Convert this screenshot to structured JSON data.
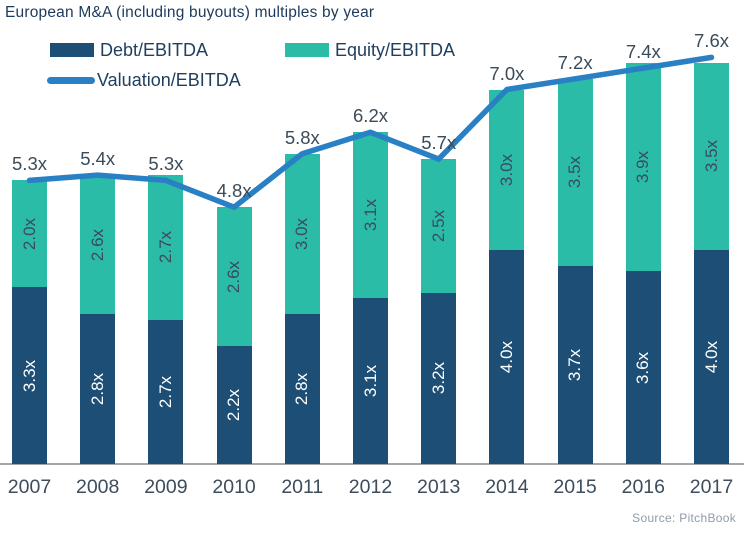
{
  "title": "European M&A (including buyouts) multiples by year",
  "source": "Source: PitchBook",
  "colors": {
    "debt": "#1d4e75",
    "equity": "#2bbca8",
    "line": "#2980c4",
    "axis": "#a6a6a6",
    "text_dark": "#3a4c5a",
    "text_navy": "#20405f"
  },
  "legend": {
    "debt_label": "Debt/EBITDA",
    "equity_label": "Equity/EBITDA",
    "valuation_label": "Valuation/EBITDA"
  },
  "chart_data": {
    "type": "bar",
    "subtype": "stacked-bars-with-line-overlay",
    "title": "European M&A (including buyouts) multiples by year",
    "categories": [
      "2007",
      "2008",
      "2009",
      "2010",
      "2011",
      "2012",
      "2013",
      "2014",
      "2015",
      "2016",
      "2017"
    ],
    "series": [
      {
        "name": "Debt/EBITDA",
        "role": "bar-bottom-segment",
        "color": "#1d4e75",
        "values": [
          3.3,
          2.8,
          2.7,
          2.2,
          2.8,
          3.1,
          3.2,
          4.0,
          3.7,
          3.6,
          4.0
        ],
        "labels": [
          "3.3x",
          "2.8x",
          "2.7x",
          "2.2x",
          "2.8x",
          "3.1x",
          "3.2x",
          "4.0x",
          "3.7x",
          "3.6x",
          "4.0x"
        ]
      },
      {
        "name": "Equity/EBITDA",
        "role": "bar-top-segment",
        "color": "#2bbca8",
        "values": [
          2.0,
          2.6,
          2.7,
          2.6,
          3.0,
          3.1,
          2.5,
          3.0,
          3.5,
          3.9,
          3.5
        ],
        "labels": [
          "2.0x",
          "2.6x",
          "2.7x",
          "2.6x",
          "3.0x",
          "3.1x",
          "2.5x",
          "3.0x",
          "3.5x",
          "3.9x",
          "3.5x"
        ]
      },
      {
        "name": "Valuation/EBITDA",
        "role": "line",
        "color": "#2980c4",
        "values": [
          5.3,
          5.4,
          5.3,
          4.8,
          5.8,
          6.2,
          5.7,
          7.0,
          7.2,
          7.4,
          7.6
        ],
        "labels": [
          "5.3x",
          "5.4x",
          "5.3x",
          "4.8x",
          "5.8x",
          "6.2x",
          "5.7x",
          "7.0x",
          "7.2x",
          "7.4x",
          "7.6x"
        ]
      }
    ],
    "xlabel": "",
    "ylabel": "",
    "ylim": [
      0,
      8.7
    ],
    "grid": false,
    "y_axis_shown": false,
    "legend_position": "top-left",
    "value_label_rotation": "vertical",
    "source": "Source: PitchBook"
  }
}
